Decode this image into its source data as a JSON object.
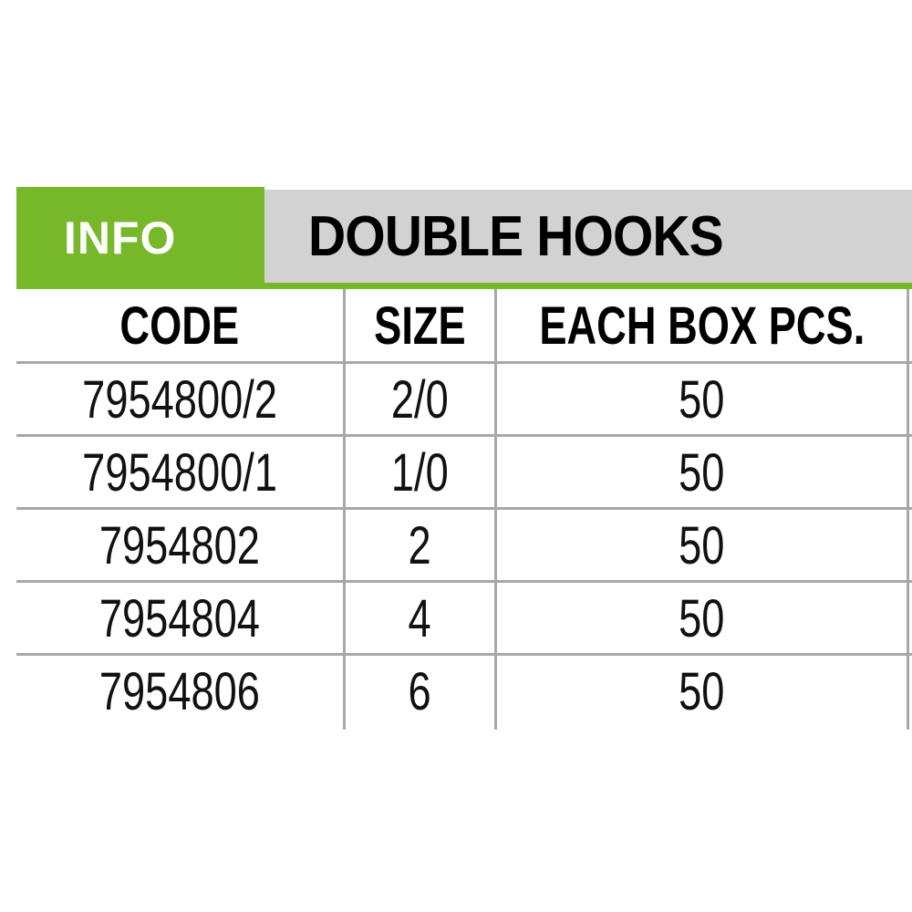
{
  "banner": {
    "info_label": "INFO",
    "title": "DOUBLE HOOKS"
  },
  "colors": {
    "accent_green": "#77b82a",
    "title_bar_gray": "#d2d2d2",
    "grid_gray": "#a8a8a8"
  },
  "table": {
    "headers": [
      "CODE",
      "SIZE",
      "EACH BOX PCS."
    ],
    "rows": [
      [
        "7954800/2",
        "2/0",
        "50"
      ],
      [
        "7954800/1",
        "1/0",
        "50"
      ],
      [
        "7954802",
        "2",
        "50"
      ],
      [
        "7954804",
        "4",
        "50"
      ],
      [
        "7954806",
        "6",
        "50"
      ]
    ]
  }
}
